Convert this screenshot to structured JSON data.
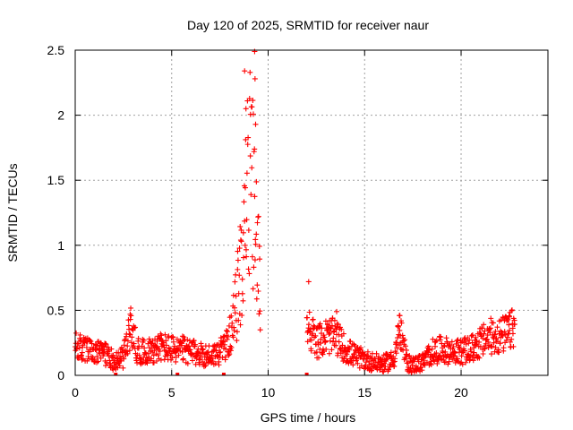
{
  "chart_data": {
    "type": "scatter",
    "title": "Day 120 of 2025, SRMTID for receiver naur",
    "xlabel": "GPS time / hours",
    "ylabel": "SRMTID / TECUs",
    "xlim": [
      0,
      24.5
    ],
    "ylim": [
      0,
      2.5
    ],
    "x_ticks": [
      0,
      5,
      10,
      15,
      20
    ],
    "x_tick_labels": [
      "0",
      "5",
      "10",
      "15",
      "20"
    ],
    "y_ticks": [
      0,
      0.5,
      1,
      1.5,
      2,
      2.5
    ],
    "y_tick_labels": [
      "0",
      "0.5",
      "1",
      "1.5",
      "2",
      "2.5"
    ],
    "grid": true,
    "marker": "+",
    "color": "#ff0000",
    "series": [
      {
        "name": "SRMTID",
        "profile": [
          [
            0.0,
            0.22
          ],
          [
            0.5,
            0.2
          ],
          [
            1.0,
            0.16
          ],
          [
            1.5,
            0.18
          ],
          [
            2.0,
            0.11
          ],
          [
            2.5,
            0.14
          ],
          [
            2.9,
            0.38
          ],
          [
            3.2,
            0.2
          ],
          [
            3.5,
            0.18
          ],
          [
            4.0,
            0.2
          ],
          [
            4.5,
            0.22
          ],
          [
            5.0,
            0.2
          ],
          [
            5.5,
            0.2
          ],
          [
            6.0,
            0.18
          ],
          [
            6.5,
            0.16
          ],
          [
            7.0,
            0.15
          ],
          [
            7.5,
            0.18
          ],
          [
            7.9,
            0.25
          ],
          [
            8.2,
            0.4
          ],
          [
            8.5,
            0.7
          ],
          [
            8.8,
            1.2
          ],
          [
            9.0,
            1.55
          ],
          [
            9.2,
            1.4
          ],
          [
            9.4,
            1.0
          ],
          [
            9.6,
            0.7
          ],
          [
            12.0,
            0.4
          ],
          [
            12.2,
            0.35
          ],
          [
            12.5,
            0.25
          ],
          [
            13.0,
            0.3
          ],
          [
            13.5,
            0.3
          ],
          [
            14.0,
            0.2
          ],
          [
            14.5,
            0.15
          ],
          [
            15.0,
            0.12
          ],
          [
            15.5,
            0.1
          ],
          [
            16.0,
            0.09
          ],
          [
            16.5,
            0.12
          ],
          [
            16.8,
            0.35
          ],
          [
            17.2,
            0.1
          ],
          [
            17.5,
            0.08
          ],
          [
            18.0,
            0.1
          ],
          [
            18.5,
            0.18
          ],
          [
            19.0,
            0.2
          ],
          [
            19.5,
            0.18
          ],
          [
            20.0,
            0.18
          ],
          [
            20.5,
            0.2
          ],
          [
            21.0,
            0.25
          ],
          [
            21.5,
            0.3
          ],
          [
            22.0,
            0.3
          ],
          [
            22.5,
            0.33
          ],
          [
            22.8,
            0.38
          ]
        ],
        "segments": [
          [
            0.0,
            9.6
          ],
          [
            12.0,
            22.8
          ]
        ],
        "peaks": [
          [
            2.85,
            0.47
          ],
          [
            8.78,
            2.34
          ],
          [
            8.85,
            2.05
          ],
          [
            9.3,
            2.49
          ],
          [
            9.32,
            2.28
          ],
          [
            9.35,
            1.93
          ],
          [
            12.1,
            0.72
          ],
          [
            13.55,
            0.49
          ],
          [
            16.8,
            0.46
          ],
          [
            22.5,
            0.45
          ]
        ],
        "zero_markers": [
          2.1,
          5.3,
          7.7,
          12.0
        ]
      }
    ]
  }
}
